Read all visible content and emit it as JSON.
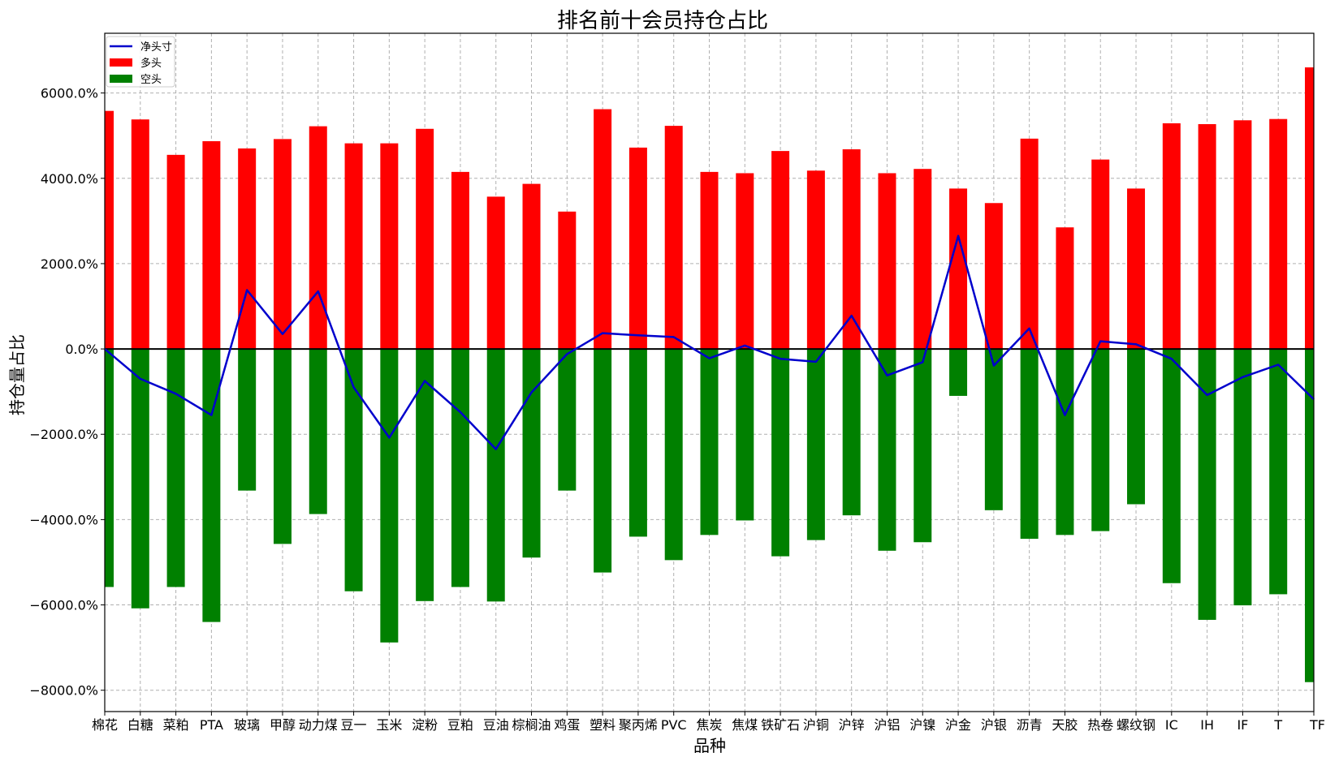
{
  "chart_data": {
    "type": "bar",
    "title": "排名前十会员持仓占比",
    "xlabel": "品种",
    "ylabel": "持仓量占比",
    "ylim": [
      -8500,
      7400
    ],
    "yticks": [
      -8000,
      -6000,
      -4000,
      -2000,
      0,
      2000,
      4000,
      6000
    ],
    "ytick_labels": [
      "−8000.0%",
      "−6000.0%",
      "−4000.0%",
      "−2000.0%",
      "0.0%",
      "2000.0%",
      "4000.0%",
      "6000.0%"
    ],
    "grid": true,
    "legend_position": "top-left",
    "categories": [
      "棉花",
      "白糖",
      "菜粕",
      "PTA",
      "玻璃",
      "甲醇",
      "动力煤",
      "豆一",
      "玉米",
      "淀粉",
      "豆粕",
      "豆油",
      "棕榈油",
      "鸡蛋",
      "塑料",
      "聚丙烯",
      "PVC",
      "焦炭",
      "焦煤",
      "铁矿石",
      "沪铜",
      "沪锌",
      "沪铝",
      "沪镍",
      "沪金",
      "沪银",
      "沥青",
      "天胶",
      "热卷",
      "螺纹钢",
      "IC",
      "IH",
      "IF",
      "T",
      "TF"
    ],
    "series": [
      {
        "name": "净头寸",
        "kind": "line",
        "color": "#0000cc",
        "values": [
          0,
          -700,
          -1050,
          -1550,
          1380,
          350,
          1350,
          -900,
          -2080,
          -750,
          -1480,
          -2350,
          -1020,
          -120,
          370,
          320,
          280,
          -220,
          80,
          -230,
          -300,
          780,
          -620,
          -310,
          2650,
          -390,
          480,
          -1550,
          180,
          110,
          -230,
          -1080,
          -660,
          -370,
          -1180
        ]
      },
      {
        "name": "多头",
        "kind": "bar",
        "color": "#ff0000",
        "values": [
          5580,
          5380,
          4550,
          4870,
          4700,
          4920,
          5220,
          4820,
          4820,
          5160,
          4150,
          3570,
          3870,
          3220,
          5620,
          4720,
          5230,
          4150,
          4120,
          4640,
          4180,
          4680,
          4120,
          4220,
          3760,
          3420,
          4930,
          2850,
          4440,
          3760,
          5290,
          5270,
          5360,
          5390,
          6600
        ]
      },
      {
        "name": "空头",
        "kind": "bar",
        "color": "#008000",
        "values": [
          -5580,
          -6080,
          -5580,
          -6400,
          -3320,
          -4570,
          -3870,
          -5680,
          -6880,
          -5910,
          -5580,
          -5920,
          -4890,
          -3320,
          -5240,
          -4400,
          -4950,
          -4360,
          -4020,
          -4860,
          -4480,
          -3900,
          -4730,
          -4530,
          -1100,
          -3780,
          -4450,
          -4360,
          -4270,
          -3640,
          -5490,
          -6350,
          -6010,
          -5750,
          -7810
        ]
      }
    ]
  },
  "colors": {
    "net": "#0000cc",
    "long": "#ff0000",
    "short": "#008000",
    "grid": "#b0b0b0",
    "zero_line": "#000000"
  }
}
